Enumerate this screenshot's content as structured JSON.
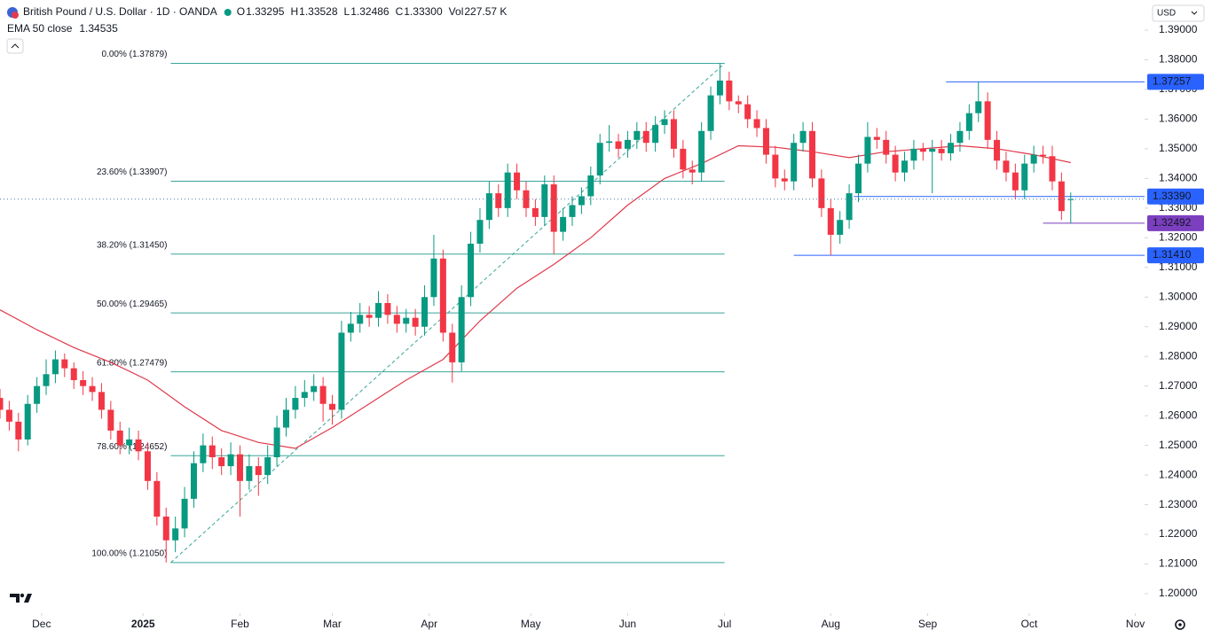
{
  "chart_data": {
    "type": "candlestick",
    "title": "British Pound / U.S. Dollar · 1D · OANDA",
    "currency": "USD",
    "legend": [
      {
        "key": "O",
        "value": 1.33295
      },
      {
        "key": "H",
        "value": 1.33528
      },
      {
        "key": "L",
        "value": 1.32486
      },
      {
        "key": "C",
        "value": 1.333,
        "value_label": "1.33300"
      },
      {
        "key": "Vol",
        "value": 227570,
        "value_label": "227.57 K"
      }
    ],
    "up_color": "#089981",
    "down_color": "#f23645",
    "xlim": [
      0,
      248
    ],
    "ylim": [
      1.2,
      1.39
    ],
    "grid": false,
    "xticks": [
      {
        "value": 9,
        "label": "Dec"
      },
      {
        "value": 31,
        "label": "2025"
      },
      {
        "value": 52,
        "label": "Feb"
      },
      {
        "value": 72,
        "label": "Mar"
      },
      {
        "value": 93,
        "label": "Apr"
      },
      {
        "value": 115,
        "label": "May"
      },
      {
        "value": 136,
        "label": "Jun"
      },
      {
        "value": 157,
        "label": "Jul"
      },
      {
        "value": 180,
        "label": "Aug"
      },
      {
        "value": 201,
        "label": "Sep"
      },
      {
        "value": 223,
        "label": "Oct"
      },
      {
        "value": 246,
        "label": "Nov"
      }
    ],
    "yticks": [
      {
        "value": 1.2,
        "label": "1.20000"
      },
      {
        "value": 1.21,
        "label": "1.21000"
      },
      {
        "value": 1.22,
        "label": "1.22000"
      },
      {
        "value": 1.23,
        "label": "1.23000"
      },
      {
        "value": 1.24,
        "label": "1.24000"
      },
      {
        "value": 1.25,
        "label": "1.25000"
      },
      {
        "value": 1.26,
        "label": "1.26000"
      },
      {
        "value": 1.27,
        "label": "1.27000"
      },
      {
        "value": 1.28,
        "label": "1.28000"
      },
      {
        "value": 1.29,
        "label": "1.29000"
      },
      {
        "value": 1.3,
        "label": "1.30000"
      },
      {
        "value": 1.31,
        "label": "1.31000"
      },
      {
        "value": 1.32,
        "label": "1.32000"
      },
      {
        "value": 1.33,
        "label": "1.33000"
      },
      {
        "value": 1.34,
        "label": "1.34000"
      },
      {
        "value": 1.35,
        "label": "1.35000"
      },
      {
        "value": 1.36,
        "label": "1.36000"
      },
      {
        "value": 1.37,
        "label": "1.37000"
      },
      {
        "value": 1.38,
        "label": "1.38000"
      },
      {
        "value": 1.39,
        "label": "1.39000"
      }
    ],
    "x": [
      0,
      2,
      4,
      6,
      8,
      10,
      12,
      14,
      16,
      18,
      20,
      22,
      24,
      26,
      28,
      30,
      32,
      34,
      36,
      38,
      40,
      42,
      44,
      46,
      48,
      50,
      52,
      54,
      56,
      58,
      60,
      62,
      64,
      66,
      68,
      70,
      72,
      74,
      76,
      78,
      80,
      82,
      84,
      86,
      88,
      90,
      92,
      94,
      96,
      98,
      100,
      102,
      104,
      106,
      108,
      110,
      112,
      114,
      116,
      118,
      120,
      122,
      124,
      126,
      128,
      130,
      132,
      134,
      136,
      138,
      140,
      142,
      144,
      146,
      148,
      150,
      152,
      154,
      156,
      158,
      160,
      162,
      164,
      166,
      168,
      170,
      172,
      174,
      176,
      178,
      180,
      182,
      184,
      186,
      188,
      190,
      192,
      194,
      196,
      198,
      200,
      202,
      204,
      206,
      208,
      210,
      212,
      214,
      216,
      218,
      220,
      222,
      224,
      226,
      228,
      230,
      232
    ],
    "ohlc": [
      [
        1.266,
        1.269,
        1.259,
        1.262
      ],
      [
        1.262,
        1.265,
        1.255,
        1.258
      ],
      [
        1.258,
        1.261,
        1.248,
        1.252
      ],
      [
        1.252,
        1.267,
        1.25,
        1.264
      ],
      [
        1.264,
        1.273,
        1.261,
        1.27
      ],
      [
        1.27,
        1.279,
        1.267,
        1.274
      ],
      [
        1.274,
        1.282,
        1.271,
        1.279
      ],
      [
        1.279,
        1.281,
        1.273,
        1.276
      ],
      [
        1.276,
        1.278,
        1.269,
        1.272
      ],
      [
        1.272,
        1.275,
        1.267,
        1.27
      ],
      [
        1.27,
        1.273,
        1.265,
        1.268
      ],
      [
        1.268,
        1.271,
        1.259,
        1.262
      ],
      [
        1.262,
        1.265,
        1.252,
        1.255
      ],
      [
        1.255,
        1.258,
        1.247,
        1.25
      ],
      [
        1.25,
        1.256,
        1.247,
        1.252
      ],
      [
        1.252,
        1.255,
        1.245,
        1.248
      ],
      [
        1.248,
        1.251,
        1.235,
        1.238
      ],
      [
        1.238,
        1.241,
        1.223,
        1.226
      ],
      [
        1.226,
        1.229,
        1.2105,
        1.218
      ],
      [
        1.218,
        1.226,
        1.214,
        1.222
      ],
      [
        1.222,
        1.236,
        1.219,
        1.232
      ],
      [
        1.232,
        1.248,
        1.229,
        1.244
      ],
      [
        1.244,
        1.254,
        1.241,
        1.25
      ],
      [
        1.25,
        1.253,
        1.242,
        1.246
      ],
      [
        1.246,
        1.249,
        1.24,
        1.243
      ],
      [
        1.243,
        1.251,
        1.24,
        1.247
      ],
      [
        1.247,
        1.25,
        1.226,
        1.238
      ],
      [
        1.238,
        1.247,
        1.235,
        1.243
      ],
      [
        1.243,
        1.246,
        1.233,
        1.24
      ],
      [
        1.24,
        1.25,
        1.237,
        1.246
      ],
      [
        1.246,
        1.26,
        1.243,
        1.256
      ],
      [
        1.256,
        1.266,
        1.253,
        1.262
      ],
      [
        1.262,
        1.27,
        1.259,
        1.266
      ],
      [
        1.266,
        1.272,
        1.263,
        1.268
      ],
      [
        1.268,
        1.274,
        1.265,
        1.27
      ],
      [
        1.27,
        1.273,
        1.258,
        1.264
      ],
      [
        1.264,
        1.267,
        1.257,
        1.262
      ],
      [
        1.262,
        1.292,
        1.259,
        1.288
      ],
      [
        1.288,
        1.295,
        1.285,
        1.291
      ],
      [
        1.291,
        1.298,
        1.288,
        1.294
      ],
      [
        1.294,
        1.297,
        1.29,
        1.293
      ],
      [
        1.293,
        1.302,
        1.29,
        1.298
      ],
      [
        1.298,
        1.301,
        1.291,
        1.294
      ],
      [
        1.294,
        1.297,
        1.288,
        1.291
      ],
      [
        1.291,
        1.296,
        1.288,
        1.293
      ],
      [
        1.293,
        1.296,
        1.287,
        1.29
      ],
      [
        1.29,
        1.304,
        1.287,
        1.3
      ],
      [
        1.3,
        1.321,
        1.297,
        1.313
      ],
      [
        1.313,
        1.316,
        1.285,
        1.288
      ],
      [
        1.288,
        1.291,
        1.2712,
        1.278
      ],
      [
        1.278,
        1.304,
        1.275,
        1.3
      ],
      [
        1.3,
        1.322,
        1.297,
        1.318
      ],
      [
        1.318,
        1.33,
        1.315,
        1.326
      ],
      [
        1.326,
        1.339,
        1.323,
        1.335
      ],
      [
        1.335,
        1.338,
        1.327,
        1.33
      ],
      [
        1.33,
        1.345,
        1.327,
        1.342
      ],
      [
        1.342,
        1.345,
        1.333,
        1.336
      ],
      [
        1.336,
        1.339,
        1.327,
        1.33
      ],
      [
        1.33,
        1.333,
        1.324,
        1.327
      ],
      [
        1.327,
        1.341,
        1.324,
        1.338
      ],
      [
        1.338,
        1.341,
        1.3145,
        1.322
      ],
      [
        1.322,
        1.33,
        1.319,
        1.327
      ],
      [
        1.327,
        1.334,
        1.324,
        1.331
      ],
      [
        1.331,
        1.337,
        1.328,
        1.334
      ],
      [
        1.334,
        1.344,
        1.331,
        1.341
      ],
      [
        1.341,
        1.355,
        1.338,
        1.352
      ],
      [
        1.352,
        1.358,
        1.349,
        1.3525
      ],
      [
        1.3525,
        1.355,
        1.347,
        1.35
      ],
      [
        1.35,
        1.356,
        1.347,
        1.353
      ],
      [
        1.353,
        1.359,
        1.35,
        1.356
      ],
      [
        1.356,
        1.359,
        1.349,
        1.352
      ],
      [
        1.352,
        1.361,
        1.349,
        1.358
      ],
      [
        1.358,
        1.363,
        1.355,
        1.36
      ],
      [
        1.36,
        1.363,
        1.347,
        1.35
      ],
      [
        1.35,
        1.353,
        1.34,
        1.343
      ],
      [
        1.343,
        1.346,
        1.338,
        1.342
      ],
      [
        1.342,
        1.359,
        1.339,
        1.356
      ],
      [
        1.356,
        1.371,
        1.353,
        1.368
      ],
      [
        1.368,
        1.3788,
        1.365,
        1.373
      ],
      [
        1.373,
        1.376,
        1.363,
        1.366
      ],
      [
        1.366,
        1.368,
        1.362,
        1.365
      ],
      [
        1.365,
        1.368,
        1.357,
        1.36
      ],
      [
        1.36,
        1.363,
        1.354,
        1.357
      ],
      [
        1.357,
        1.36,
        1.345,
        1.348
      ],
      [
        1.348,
        1.351,
        1.337,
        1.34
      ],
      [
        1.34,
        1.343,
        1.336,
        1.339
      ],
      [
        1.339,
        1.355,
        1.336,
        1.352
      ],
      [
        1.352,
        1.359,
        1.349,
        1.356
      ],
      [
        1.356,
        1.359,
        1.337,
        1.34
      ],
      [
        1.34,
        1.343,
        1.327,
        1.33
      ],
      [
        1.33,
        1.333,
        1.3141,
        1.321
      ],
      [
        1.321,
        1.329,
        1.318,
        1.326
      ],
      [
        1.326,
        1.338,
        1.323,
        1.335
      ],
      [
        1.335,
        1.348,
        1.332,
        1.345
      ],
      [
        1.345,
        1.359,
        1.342,
        1.354
      ],
      [
        1.354,
        1.357,
        1.35,
        1.353
      ],
      [
        1.353,
        1.356,
        1.345,
        1.348
      ],
      [
        1.348,
        1.351,
        1.339,
        1.342
      ],
      [
        1.342,
        1.349,
        1.339,
        1.346
      ],
      [
        1.346,
        1.353,
        1.343,
        1.35
      ],
      [
        1.35,
        1.352,
        1.346,
        1.349
      ],
      [
        1.349,
        1.353,
        1.335,
        1.35
      ],
      [
        1.35,
        1.353,
        1.346,
        1.3485
      ],
      [
        1.3485,
        1.355,
        1.346,
        1.352
      ],
      [
        1.352,
        1.359,
        1.349,
        1.356
      ],
      [
        1.356,
        1.365,
        1.353,
        1.362
      ],
      [
        1.362,
        1.3726,
        1.359,
        1.366
      ],
      [
        1.366,
        1.369,
        1.35,
        1.353
      ],
      [
        1.353,
        1.356,
        1.343,
        1.346
      ],
      [
        1.346,
        1.349,
        1.339,
        1.342
      ],
      [
        1.342,
        1.345,
        1.333,
        1.336
      ],
      [
        1.336,
        1.348,
        1.333,
        1.345
      ],
      [
        1.345,
        1.351,
        1.342,
        1.348
      ],
      [
        1.348,
        1.351,
        1.345,
        1.3475
      ],
      [
        1.3475,
        1.351,
        1.336,
        1.339
      ],
      [
        1.339,
        1.342,
        1.326,
        1.329
      ],
      [
        1.33295,
        1.33528,
        1.32486,
        1.333
      ]
    ],
    "ema": {
      "name": "EMA 50 close",
      "last": 1.34535,
      "color": "#e0394a",
      "x": [
        0,
        8,
        16,
        24,
        32,
        40,
        48,
        56,
        64,
        72,
        80,
        88,
        96,
        104,
        112,
        120,
        128,
        136,
        144,
        152,
        160,
        168,
        176,
        184,
        192,
        200,
        208,
        216,
        224,
        232
      ],
      "values": [
        1.2957,
        1.289,
        1.283,
        1.278,
        1.272,
        1.263,
        1.255,
        1.251,
        1.249,
        1.256,
        1.264,
        1.272,
        1.279,
        1.292,
        1.303,
        1.311,
        1.32,
        1.331,
        1.34,
        1.345,
        1.351,
        1.3505,
        1.349,
        1.347,
        1.349,
        1.35,
        1.351,
        1.35,
        1.348,
        1.34535
      ]
    },
    "fib": {
      "color": "#3aa59a",
      "x": [
        37,
        157
      ],
      "trend": [
        1.2105,
        1.37879
      ],
      "levels": [
        {
          "label": "0.00% (1.37879)",
          "value": 1.37879
        },
        {
          "label": "23.60% (1.33907)",
          "value": 1.33907
        },
        {
          "label": "38.20% (1.31450)",
          "value": 1.3145
        },
        {
          "label": "50.00% (1.29465)",
          "value": 1.29465
        },
        {
          "label": "61.80% (1.27479)",
          "value": 1.27479
        },
        {
          "label": "78.60% (1.24652)",
          "value": 1.24652
        },
        {
          "label": "100.00% (1.21050)",
          "value": 1.2105
        }
      ]
    },
    "hlines": [
      {
        "value": 1.37257,
        "label": "1.37257",
        "from": 205,
        "color": "#2962ff"
      },
      {
        "value": 1.3339,
        "label": "1.33390",
        "from": 185,
        "color": "#2962ff"
      },
      {
        "value": 1.32492,
        "label": "1.32492",
        "from": 226,
        "color": "#7b3fbf"
      },
      {
        "value": 1.3141,
        "label": "1.31410",
        "from": 172,
        "color": "#2962ff"
      }
    ]
  }
}
